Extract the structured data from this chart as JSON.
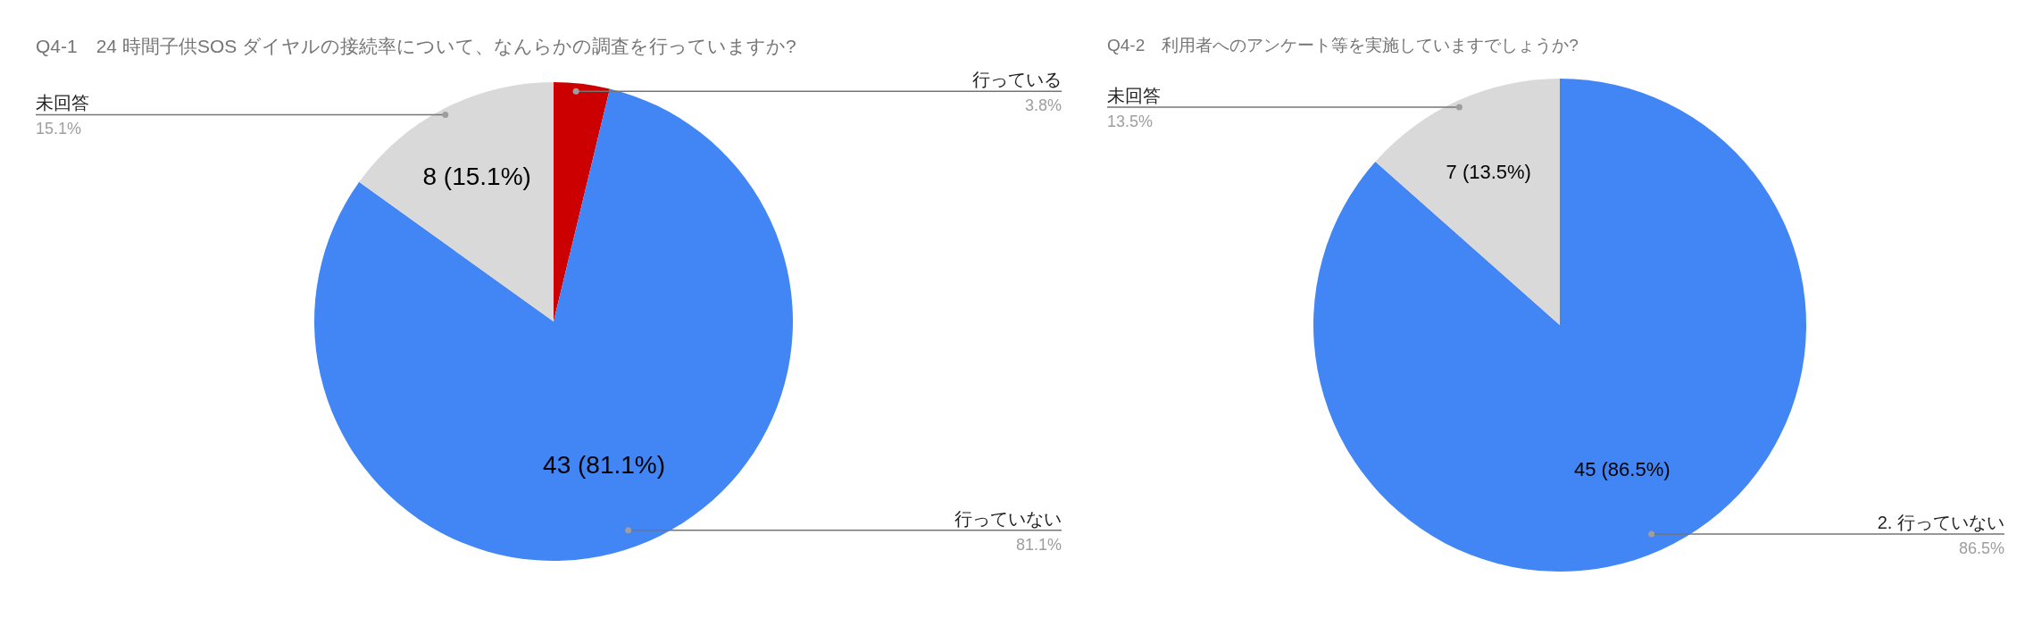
{
  "chart_data": [
    {
      "type": "pie",
      "title": "Q4-1　24 時間子供SOS ダイヤルの接続率について、なんらかの調査を行っていますか?",
      "categories": [
        "行っている",
        "行っていない",
        "未回答"
      ],
      "values": [
        2,
        43,
        8
      ],
      "colors": [
        "#cc0000",
        "#4285f4",
        "#d9d9d9"
      ],
      "value_labels": [
        null,
        "43 (81.1%)",
        "8 (15.1%)"
      ],
      "annotations": [
        "3.8%",
        "81.1%",
        "15.1%"
      ],
      "legend": false
    },
    {
      "type": "pie",
      "title": "Q4-2　利用者へのアンケート等を実施していますでしょうか?",
      "categories": [
        "2. 行っていない",
        "未回答"
      ],
      "values": [
        45,
        7
      ],
      "colors": [
        "#4285f4",
        "#d9d9d9"
      ],
      "value_labels": [
        "45 (86.5%)",
        "7 (13.5%)"
      ],
      "annotations": [
        "86.5%",
        "13.5%"
      ],
      "legend": false
    }
  ]
}
